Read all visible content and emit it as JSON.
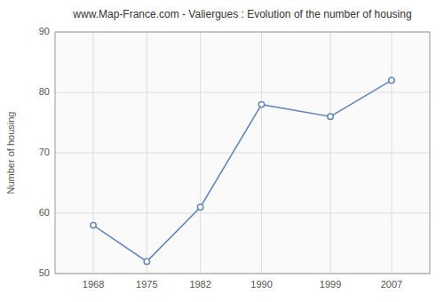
{
  "chart_data": {
    "type": "line",
    "title": "www.Map-France.com - Valiergues : Evolution of the number of housing",
    "ylabel": "Number of housing",
    "x": [
      1968,
      1975,
      1982,
      1990,
      1999,
      2007
    ],
    "values": [
      58,
      52,
      61,
      78,
      76,
      82
    ],
    "xlim": [
      1963,
      2012
    ],
    "xticks": [
      1968,
      1975,
      1982,
      1990,
      1999,
      2007
    ],
    "ylim": [
      50,
      90
    ],
    "yticks": [
      50,
      60,
      70,
      80,
      90
    ],
    "color": "#6688bb",
    "marker": "circle",
    "grid": true
  }
}
